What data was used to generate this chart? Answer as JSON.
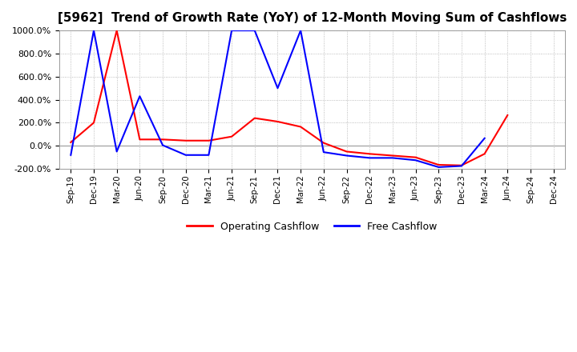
{
  "title": "[5962]  Trend of Growth Rate (YoY) of 12-Month Moving Sum of Cashflows",
  "title_fontsize": 11,
  "ylim": [
    -200,
    1000
  ],
  "yticks": [
    -200,
    0,
    200,
    400,
    600,
    800,
    1000
  ],
  "background_color": "#ffffff",
  "grid_color": "#aaaaaa",
  "x_labels": [
    "Sep-19",
    "Dec-19",
    "Mar-20",
    "Jun-20",
    "Sep-20",
    "Dec-20",
    "Mar-21",
    "Jun-21",
    "Sep-21",
    "Dec-21",
    "Mar-22",
    "Jun-22",
    "Sep-22",
    "Dec-22",
    "Mar-23",
    "Jun-23",
    "Sep-23",
    "Dec-23",
    "Mar-24",
    "Jun-24",
    "Sep-24",
    "Dec-24"
  ],
  "op_x": [
    0,
    1,
    2,
    3,
    4,
    5,
    6,
    7,
    8,
    9,
    10,
    11,
    12,
    13,
    14,
    15,
    16,
    17,
    18,
    19
  ],
  "op_y": [
    30,
    200,
    1000,
    55,
    55,
    45,
    45,
    80,
    240,
    210,
    165,
    25,
    -50,
    -70,
    -85,
    -100,
    -165,
    -170,
    -70,
    265
  ],
  "free_x": [
    0,
    1,
    2,
    3,
    4,
    5,
    6,
    7,
    8,
    9,
    10,
    11,
    12,
    13,
    14,
    15,
    16,
    17,
    18
  ],
  "free_y": [
    -80,
    1000,
    -50,
    430,
    5,
    -80,
    -80,
    1000,
    1000,
    500,
    1000,
    -55,
    -85,
    -105,
    -105,
    -125,
    -185,
    -175,
    65
  ],
  "op_color": "#ff0000",
  "free_color": "#0000ff",
  "legend_labels": [
    "Operating Cashflow",
    "Free Cashflow"
  ]
}
